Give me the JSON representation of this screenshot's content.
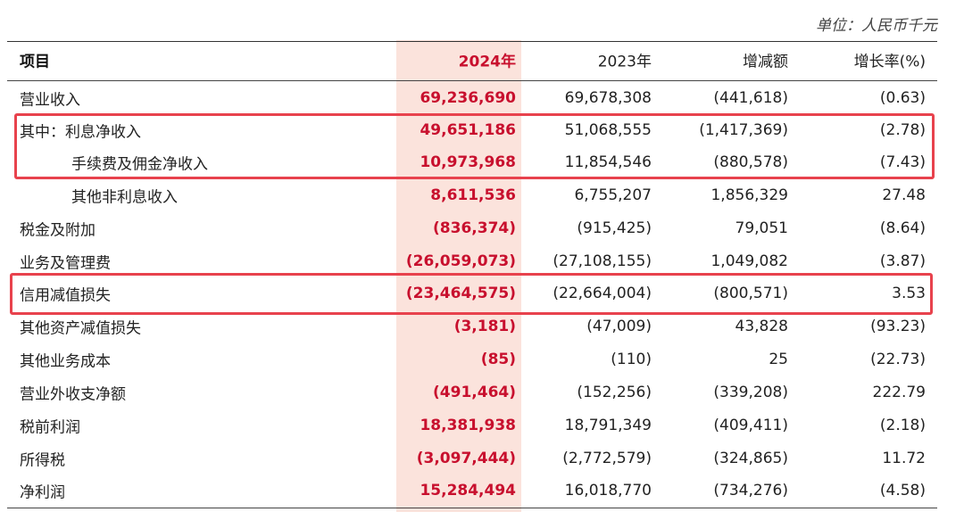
{
  "unit_note": "单位：人民币千元",
  "header": {
    "item": "项目",
    "y2024": "2024年",
    "y2023": "2023年",
    "change": "增减额",
    "rate": "增长率(%)"
  },
  "rows": [
    {
      "label": "营业收入",
      "y2024": "69,236,690",
      "y2023": "69,678,308",
      "change": "(441,618)",
      "rate": "(0.63)"
    },
    {
      "label": "其中：利息净收入",
      "y2024": "49,651,186",
      "y2023": "51,068,555",
      "change": "(1,417,369)",
      "rate": "(2.78)"
    },
    {
      "label": "手续费及佣金净收入",
      "y2024": "10,973,968",
      "y2023": "11,854,546",
      "change": "(880,578)",
      "rate": "(7.43)"
    },
    {
      "label": "其他非利息收入",
      "y2024": "8,611,536",
      "y2023": "6,755,207",
      "change": "1,856,329",
      "rate": "27.48"
    },
    {
      "label": "税金及附加",
      "y2024": "(836,374)",
      "y2023": "(915,425)",
      "change": "79,051",
      "rate": "(8.64)"
    },
    {
      "label": "业务及管理费",
      "y2024": "(26,059,073)",
      "y2023": "(27,108,155)",
      "change": "1,049,082",
      "rate": "(3.87)"
    },
    {
      "label": "信用减值损失",
      "y2024": "(23,464,575)",
      "y2023": "(22,664,004)",
      "change": "(800,571)",
      "rate": "3.53"
    },
    {
      "label": "其他资产减值损失",
      "y2024": "(3,181)",
      "y2023": "(47,009)",
      "change": "43,828",
      "rate": "(93.23)"
    },
    {
      "label": "其他业务成本",
      "y2024": "(85)",
      "y2023": "(110)",
      "change": "25",
      "rate": "(22.73)"
    },
    {
      "label": "营业外收支净额",
      "y2024": "(491,464)",
      "y2023": "(152,256)",
      "change": "(339,208)",
      "rate": "222.79"
    },
    {
      "label": "税前利润",
      "y2024": "18,381,938",
      "y2023": "18,791,349",
      "change": "(409,411)",
      "rate": "(2.18)"
    },
    {
      "label": "所得税",
      "y2024": "(3,097,444)",
      "y2023": "(2,772,579)",
      "change": "(324,865)",
      "rate": "11.72"
    },
    {
      "label": "净利润",
      "y2024": "15,284,494",
      "y2023": "16,018,770",
      "change": "(734,276)",
      "rate": "(4.58)"
    }
  ],
  "colors": {
    "accent_red": "#c8102e",
    "column_highlight": "#fbe3dc",
    "annotation_box": "#e8424d"
  }
}
